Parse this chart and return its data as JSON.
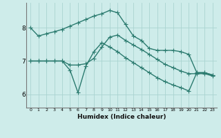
{
  "xlabel": "Humidex (Indice chaleur)",
  "x_ticks": [
    0,
    1,
    2,
    3,
    4,
    5,
    6,
    7,
    8,
    9,
    10,
    11,
    12,
    13,
    14,
    15,
    16,
    17,
    18,
    19,
    20,
    21,
    22,
    23
  ],
  "ylim": [
    5.6,
    8.75
  ],
  "yticks": [
    6,
    7,
    8
  ],
  "bg_color": "#ceecea",
  "grid_color": "#aad4d0",
  "line_color": "#2a7a6e",
  "series": [
    [
      8.0,
      7.75,
      7.82,
      7.88,
      7.95,
      8.05,
      8.15,
      8.25,
      8.35,
      8.42,
      8.52,
      8.45,
      8.1,
      7.75,
      7.62,
      7.38,
      7.32,
      7.32,
      7.32,
      7.28,
      7.2,
      6.65,
      6.65,
      6.58
    ],
    [
      7.0,
      7.0,
      7.0,
      7.0,
      7.0,
      6.72,
      6.05,
      6.85,
      7.28,
      7.55,
      7.42,
      7.28,
      7.1,
      6.95,
      6.8,
      6.65,
      6.5,
      6.38,
      6.28,
      6.2,
      6.1,
      6.65,
      6.65,
      6.58
    ],
    [
      7.0,
      7.0,
      7.0,
      7.0,
      7.0,
      6.88,
      6.88,
      6.92,
      7.08,
      7.42,
      7.72,
      7.78,
      7.62,
      7.48,
      7.35,
      7.2,
      7.05,
      6.9,
      6.8,
      6.7,
      6.62,
      6.62,
      6.62,
      6.55
    ]
  ],
  "marker": "+",
  "marker_size": 4.0,
  "linewidth": 1.0
}
